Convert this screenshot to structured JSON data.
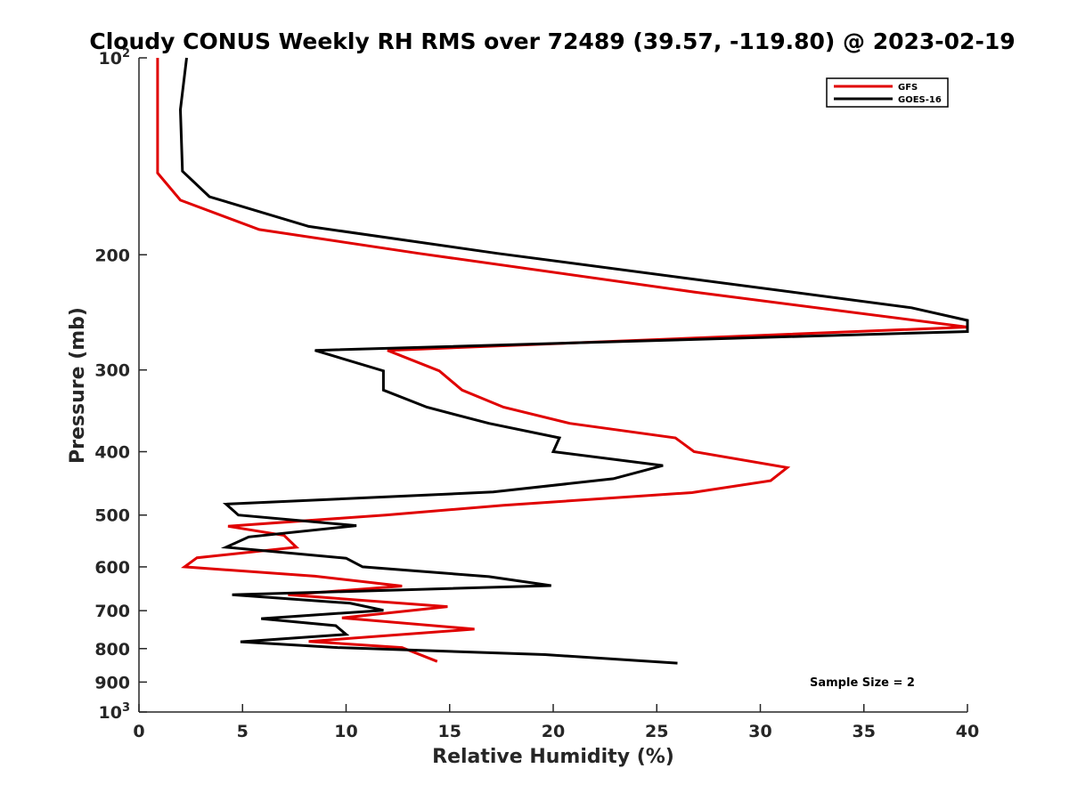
{
  "chart_data": {
    "type": "line",
    "title": "Cloudy CONUS Weekly RH RMS over 72489 (39.57, -119.80) @ 2023-02-19",
    "xlabel": "Relative Humidity (%)",
    "ylabel": "Pressure (mb)",
    "xlim": [
      0,
      40
    ],
    "ylim": [
      100,
      1000
    ],
    "y_scale": "log",
    "y_reversed": true,
    "x_ticks": [
      0,
      5,
      10,
      15,
      20,
      25,
      30,
      35,
      40
    ],
    "y_ticks": [
      {
        "value": 100,
        "label": "10",
        "sup": "2"
      },
      {
        "value": 200,
        "label": "200"
      },
      {
        "value": 300,
        "label": "300"
      },
      {
        "value": 400,
        "label": "400"
      },
      {
        "value": 500,
        "label": "500"
      },
      {
        "value": 600,
        "label": "600"
      },
      {
        "value": 700,
        "label": "700"
      },
      {
        "value": 800,
        "label": "800"
      },
      {
        "value": 900,
        "label": "900"
      },
      {
        "value": 1000,
        "label": "10",
        "sup": "3"
      }
    ],
    "grid": false,
    "legend_position": "top-right",
    "annotation": "Sample Size = 2",
    "colors": {
      "GFS": "#e00000",
      "GOES-16": "#000000"
    },
    "series": [
      {
        "name": "GFS",
        "color": "#e00000",
        "points": [
          [
            0.9,
            100
          ],
          [
            0.9,
            150
          ],
          [
            2.0,
            165
          ],
          [
            5.8,
            183
          ],
          [
            13.5,
            199
          ],
          [
            26.8,
            228
          ],
          [
            40.0,
            258
          ],
          [
            12.0,
            280
          ],
          [
            14.5,
            301
          ],
          [
            15.6,
            322
          ],
          [
            17.6,
            342
          ],
          [
            20.8,
            362
          ],
          [
            25.9,
            381
          ],
          [
            26.8,
            400
          ],
          [
            31.3,
            423
          ],
          [
            30.5,
            443
          ],
          [
            26.7,
            462
          ],
          [
            17.6,
            483
          ],
          [
            11.9,
            500
          ],
          [
            4.3,
            520
          ],
          [
            7.0,
            537
          ],
          [
            7.6,
            560
          ],
          [
            2.8,
            581
          ],
          [
            2.2,
            600
          ],
          [
            8.5,
            620
          ],
          [
            12.7,
            642
          ],
          [
            7.2,
            662
          ],
          [
            14.9,
            690
          ],
          [
            9.8,
            718
          ],
          [
            16.2,
            747
          ],
          [
            8.2,
            780
          ],
          [
            12.7,
            797
          ],
          [
            14.4,
            837
          ]
        ]
      },
      {
        "name": "GOES-16",
        "color": "#000000",
        "points": [
          [
            2.3,
            100
          ],
          [
            2.0,
            120
          ],
          [
            2.1,
            149
          ],
          [
            3.4,
            163
          ],
          [
            8.2,
            181
          ],
          [
            17.3,
            199
          ],
          [
            37.3,
            241
          ],
          [
            40.0,
            252
          ],
          [
            40.0,
            262
          ],
          [
            8.5,
            280
          ],
          [
            11.8,
            301
          ],
          [
            11.8,
            322
          ],
          [
            13.9,
            342
          ],
          [
            16.9,
            362
          ],
          [
            20.3,
            381
          ],
          [
            20.0,
            400
          ],
          [
            25.3,
            420
          ],
          [
            22.9,
            440
          ],
          [
            17.1,
            461
          ],
          [
            4.2,
            481
          ],
          [
            4.8,
            500
          ],
          [
            10.5,
            519
          ],
          [
            5.3,
            540
          ],
          [
            4.2,
            560
          ],
          [
            10.0,
            582
          ],
          [
            10.8,
            600
          ],
          [
            16.9,
            621
          ],
          [
            19.9,
            641
          ],
          [
            4.5,
            662
          ],
          [
            10.2,
            682
          ],
          [
            11.8,
            699
          ],
          [
            5.9,
            720
          ],
          [
            9.5,
            738
          ],
          [
            10.0,
            761
          ],
          [
            4.9,
            781
          ],
          [
            9.6,
            797
          ],
          [
            19.6,
            817
          ],
          [
            26.0,
            842
          ]
        ]
      }
    ]
  }
}
